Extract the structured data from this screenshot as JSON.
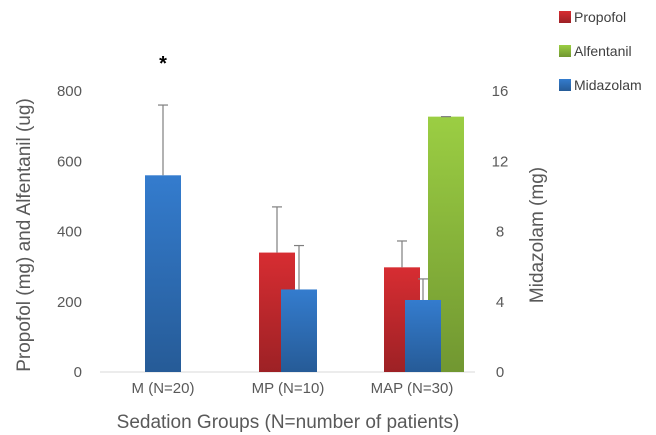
{
  "chart_data": {
    "type": "bar",
    "title": "",
    "xlabel": "Sedation Groups (N=number of patients)",
    "ylabel": "Propofol (mg) and Alfentanil (ug)",
    "y2label": "Midazolam (mg)",
    "categories": [
      "M (N=20)",
      "MP (N=10)",
      "MAP (N=30)"
    ],
    "ylim": [
      0,
      800
    ],
    "y_ticks": [
      "0",
      "200",
      "400",
      "600",
      "800"
    ],
    "y2lim": [
      0,
      16
    ],
    "y2_ticks": [
      "0",
      "4",
      "8",
      "12",
      "16"
    ],
    "series": [
      {
        "name": "Propofol",
        "axis": "left",
        "color": "#c0282d",
        "values": [
          null,
          340,
          298
        ],
        "errors": [
          null,
          130,
          75
        ]
      },
      {
        "name": "Alfentanil",
        "axis": "left",
        "color": "#8ab83c",
        "values": [
          null,
          null,
          727
        ],
        "errors": [
          null,
          null,
          0
        ]
      },
      {
        "name": "Midazolam",
        "axis": "right",
        "color": "#2e6fb8",
        "values": [
          11.2,
          4.7,
          4.1
        ],
        "errors": [
          4.0,
          2.5,
          1.2
        ]
      }
    ],
    "annotations": [
      {
        "category": "M (N=20)",
        "text": "*"
      }
    ],
    "legend_position": "top-right",
    "grid": false
  }
}
